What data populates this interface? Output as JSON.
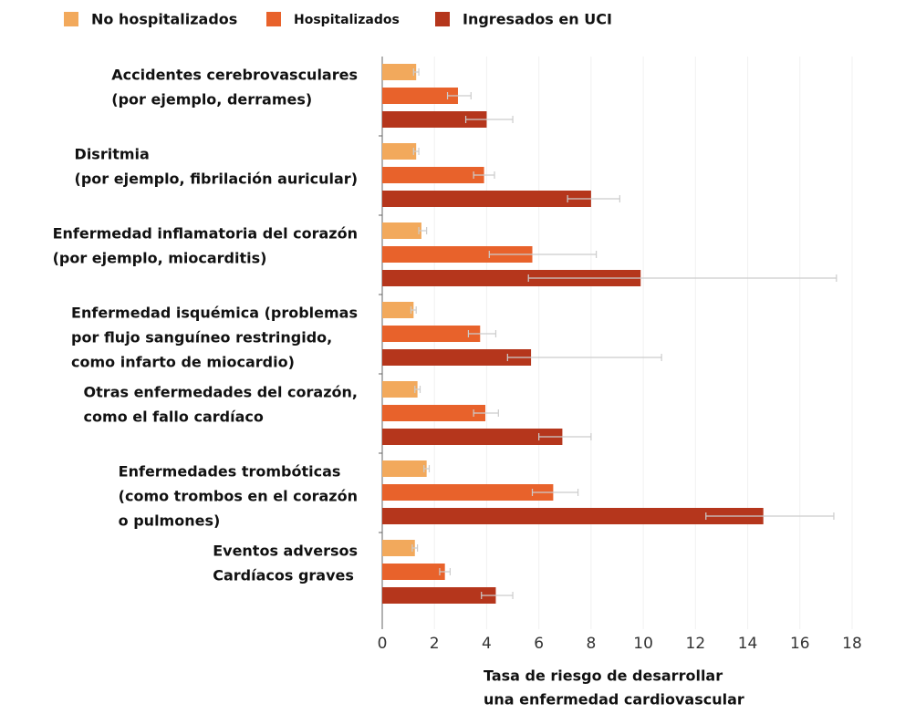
{
  "chart_data": {
    "type": "bar",
    "orientation": "horizontal",
    "categories": [
      [
        "Accidentes cerebrovasculares",
        "(por ejemplo, derrames)"
      ],
      [
        "Disritmia",
        "(por ejemplo, fibrilación auricular)"
      ],
      [
        "Enfermedad inflamatoria del corazón",
        "(por ejemplo, miocarditis)"
      ],
      [
        "Enfermedad isquémica (problemas",
        "por flujo sanguíneo restringido,",
        "como infarto de miocardio)"
      ],
      [
        "Otras enfermedades del corazón,",
        "como el fallo cardíaco"
      ],
      [
        "Enfermedades trombóticas",
        "(como trombos en el corazón",
        "o pulmones)"
      ],
      [
        "Eventos adversos",
        "Cardíacos graves"
      ]
    ],
    "series": [
      {
        "name": "No hospitalizados",
        "color": "#f2a95c",
        "values": [
          1.3,
          1.3,
          1.5,
          1.2,
          1.35,
          1.7,
          1.25
        ],
        "err_low": [
          1.2,
          1.2,
          1.4,
          1.1,
          1.25,
          1.6,
          1.15
        ],
        "err_high": [
          1.4,
          1.4,
          1.7,
          1.3,
          1.45,
          1.8,
          1.35
        ]
      },
      {
        "name": "Hospitalizados",
        "color": "#e8622b",
        "values": [
          2.9,
          3.9,
          5.75,
          3.75,
          3.95,
          6.55,
          2.4
        ],
        "err_low": [
          2.5,
          3.5,
          4.1,
          3.3,
          3.5,
          5.75,
          2.2
        ],
        "err_high": [
          3.4,
          4.3,
          8.2,
          4.35,
          4.45,
          7.5,
          2.6
        ]
      },
      {
        "name": "Ingresados en UCI",
        "color": "#b5361c",
        "values": [
          4.0,
          8.0,
          9.9,
          5.7,
          6.9,
          14.6,
          4.35
        ],
        "err_low": [
          3.2,
          7.1,
          5.6,
          4.8,
          6.0,
          12.4,
          3.8
        ],
        "err_high": [
          5.0,
          9.1,
          17.4,
          10.7,
          8.0,
          17.3,
          5.0
        ]
      }
    ],
    "xlabel": [
      "Tasa de riesgo de desarrollar",
      "una enfermedad cardiovascular"
    ],
    "xlim": [
      0,
      18
    ],
    "xticks": [
      0,
      2,
      4,
      6,
      8,
      10,
      12,
      14,
      16,
      18
    ],
    "grid": true
  }
}
